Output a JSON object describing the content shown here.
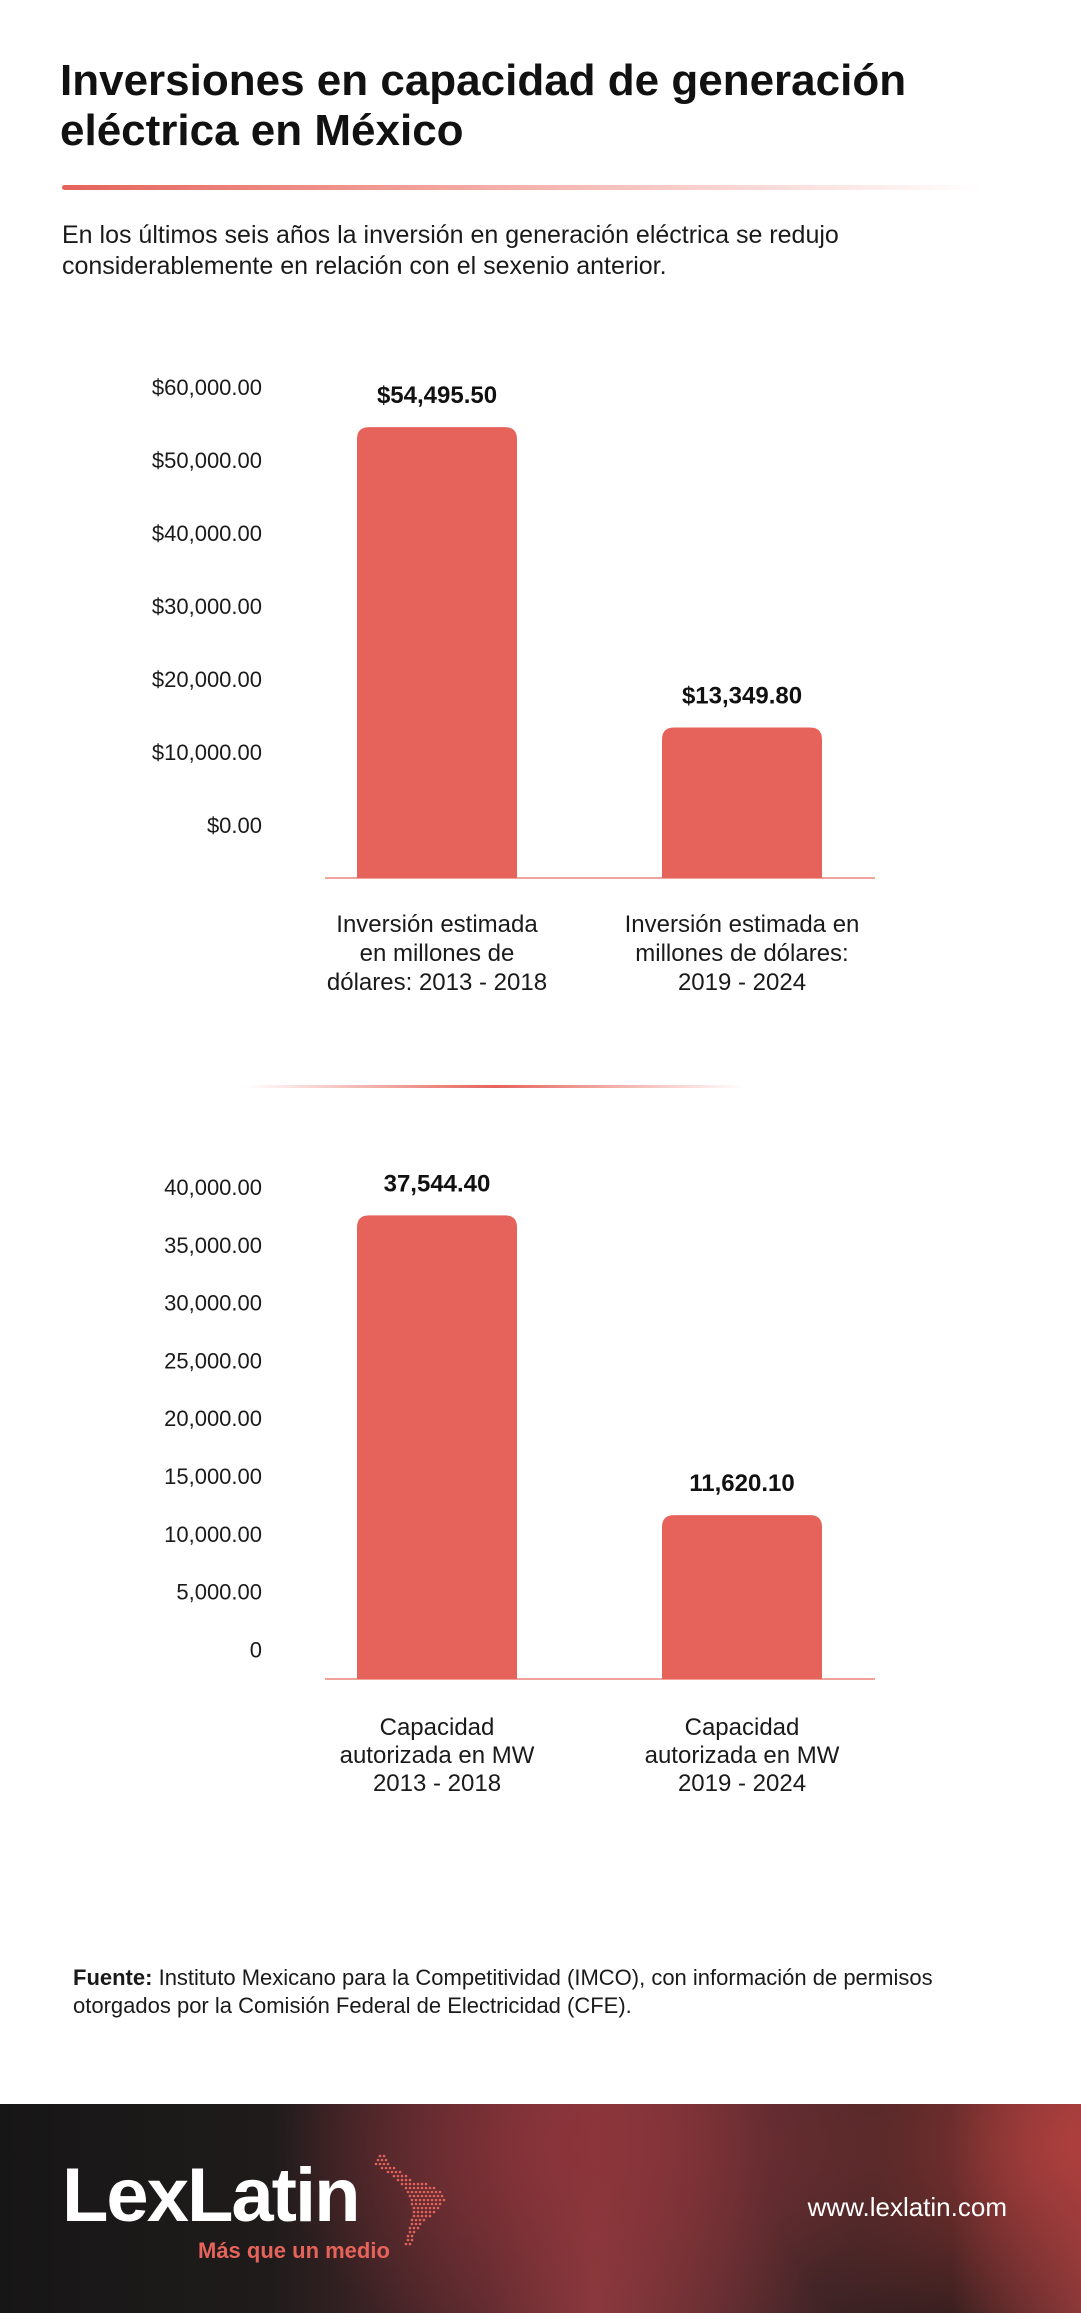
{
  "page": {
    "title": "Inversiones en capacidad de generación eléctrica en México",
    "subtitle": "En los últimos seis años la inversión en generación eléctrica se redujo considerablemente en relación con el sexenio anterior.",
    "source_label": "Fuente:",
    "source_text": "Instituto Mexicano para la Competitividad (IMCO), con información de permisos otorgados por la Comisión Federal de Electricidad (CFE)."
  },
  "footer": {
    "brand": "LexLatin",
    "tagline": "Más que un medio",
    "website": "www.lexlatin.com"
  },
  "colors": {
    "bar": "#e5635a",
    "accent": "#e5635a",
    "axis_line": "#f0a29c"
  },
  "chart_data": [
    {
      "type": "bar",
      "categories": [
        [
          "Inversión estimada",
          "en millones de",
          "dólares: 2013 - 2018"
        ],
        [
          "Inversión estimada en",
          "millones de dólares:",
          "2019 - 2024"
        ]
      ],
      "values": [
        54495.5,
        13349.8
      ],
      "value_labels": [
        "$54,495.50",
        "$13,349.80"
      ],
      "y_ticks": [
        0,
        10000,
        20000,
        30000,
        40000,
        50000,
        60000
      ],
      "y_tick_labels": [
        "$0.00",
        "$10,000.00",
        "$20,000.00",
        "$30,000.00",
        "$40,000.00",
        "$50,000.00",
        "$60,000.00"
      ],
      "ylim": [
        0,
        60000
      ],
      "grid": false
    },
    {
      "type": "bar",
      "categories": [
        [
          "Capacidad",
          "autorizada en MW",
          "2013 - 2018"
        ],
        [
          "Capacidad",
          "autorizada en MW",
          "2019 - 2024"
        ]
      ],
      "values": [
        37544.4,
        11620.1
      ],
      "value_labels": [
        "37,544.40",
        "11,620.10"
      ],
      "y_ticks": [
        0,
        5000,
        10000,
        15000,
        20000,
        25000,
        30000,
        35000,
        40000
      ],
      "y_tick_labels": [
        "0",
        "5,000.00",
        "10,000.00",
        "15,000.00",
        "20,000.00",
        "25,000.00",
        "30,000.00",
        "35,000.00",
        "40,000.00"
      ],
      "ylim": [
        0,
        40000
      ],
      "grid": false
    }
  ]
}
